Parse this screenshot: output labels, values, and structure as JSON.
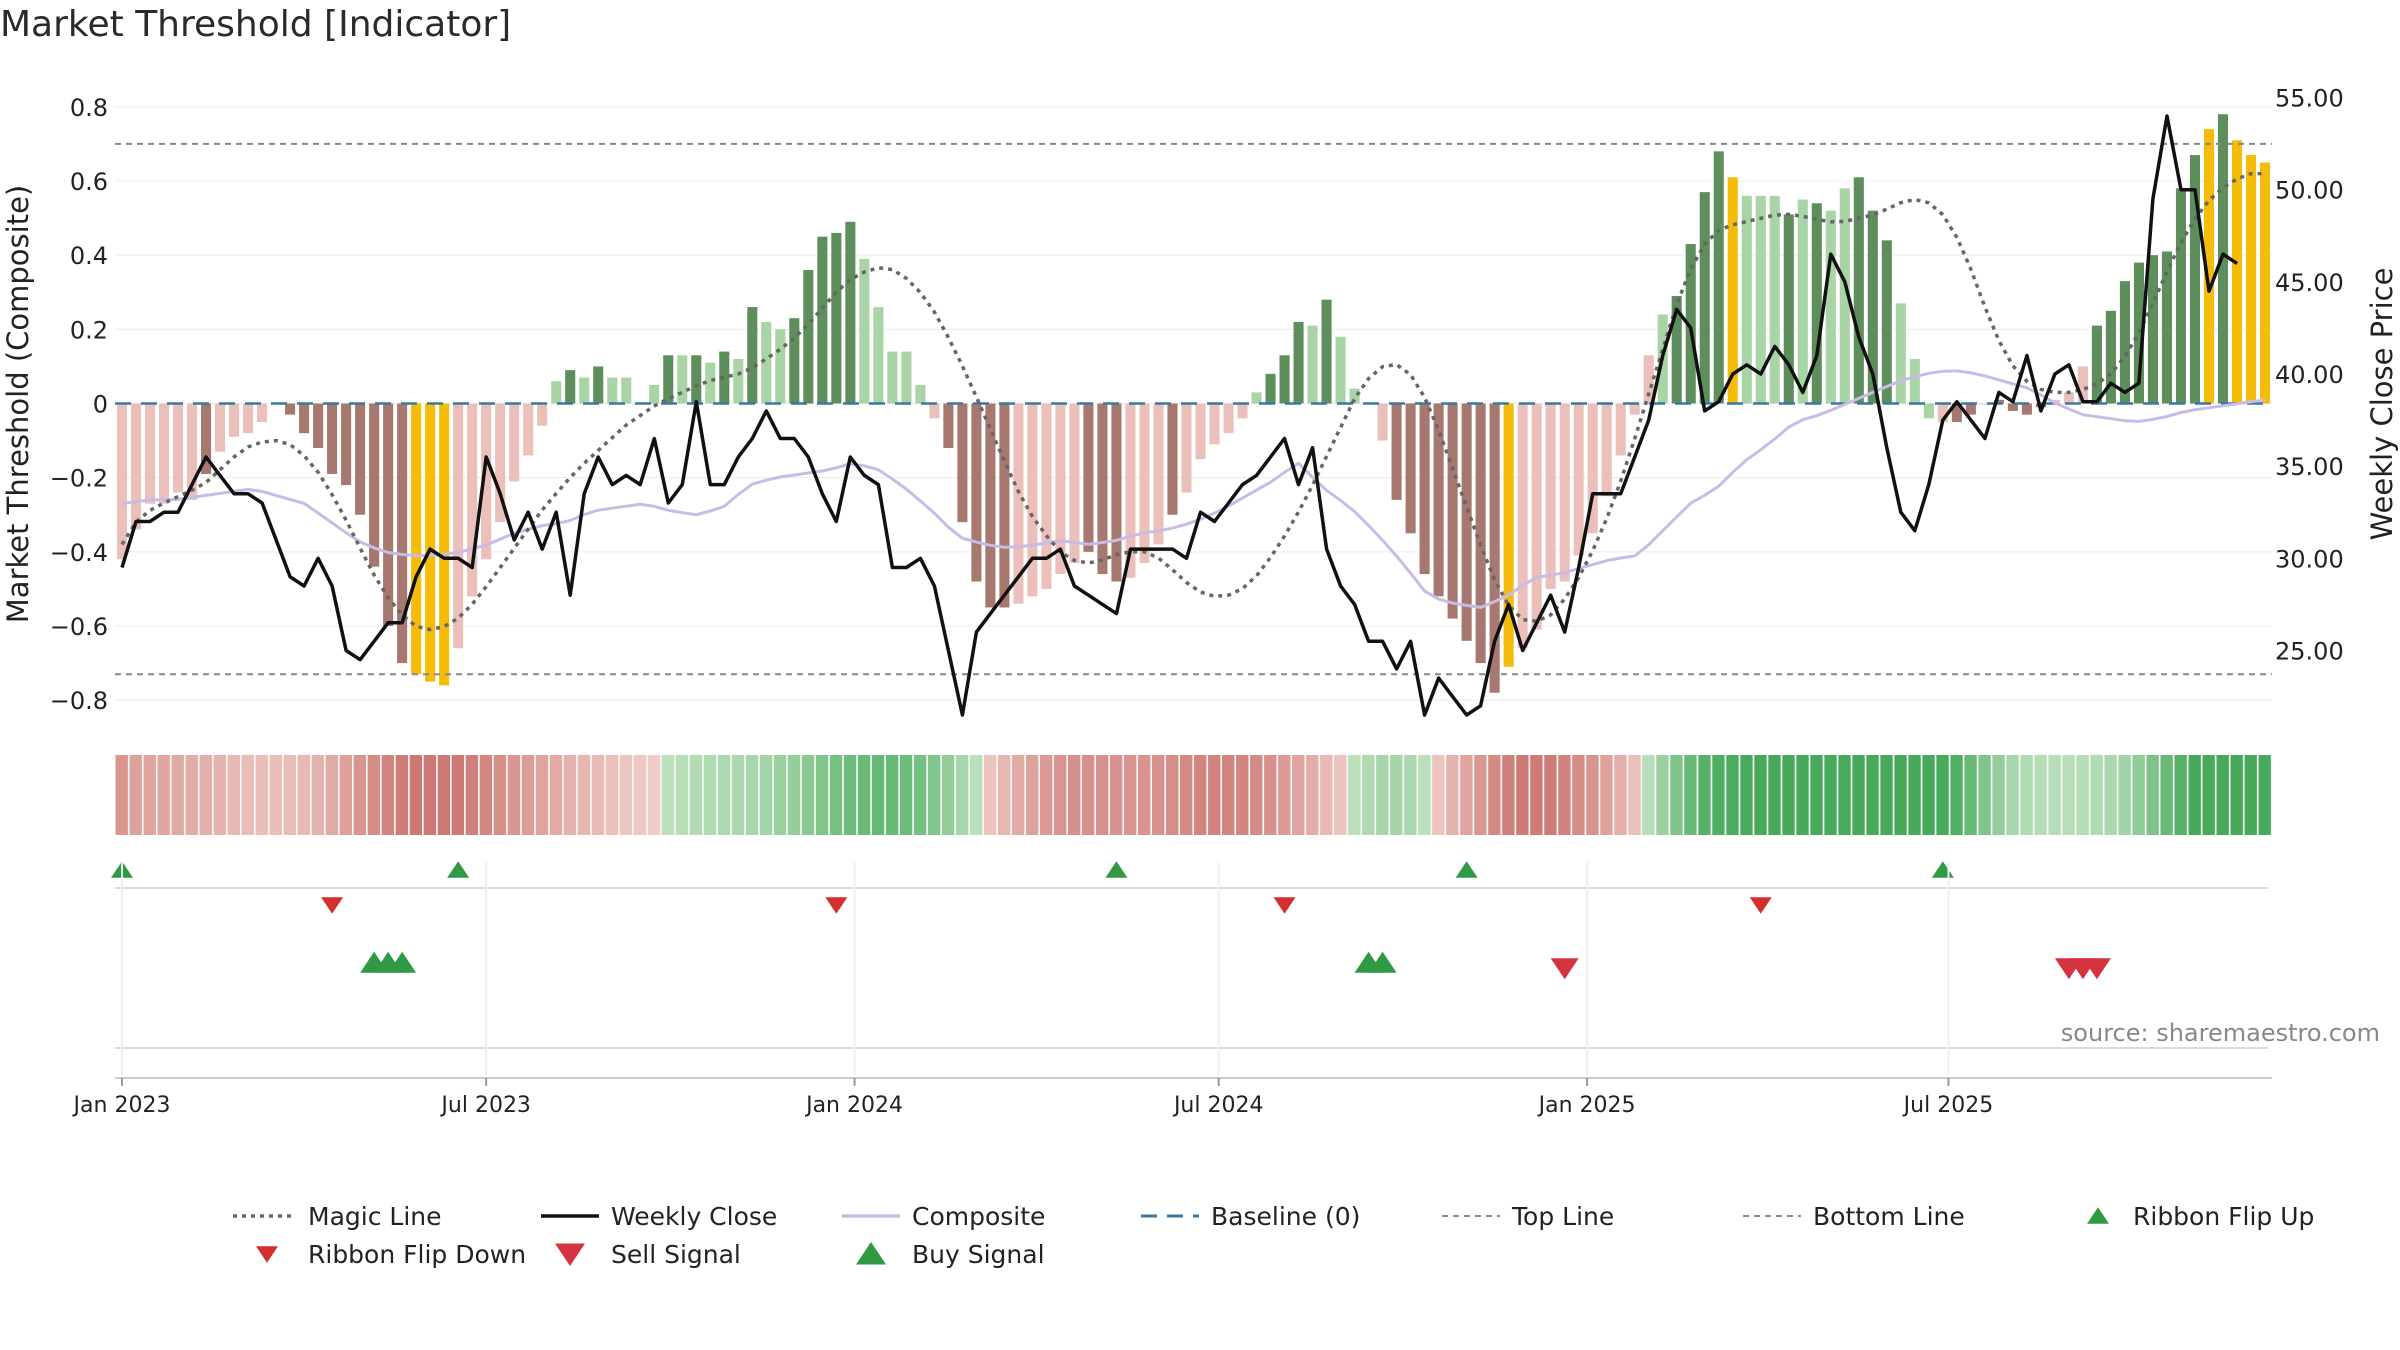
{
  "title": "Market Threshold [Indicator]",
  "source": "source: sharemaestro.com",
  "colors": {
    "neg_light": "#ebbfba",
    "neg_dark": "#a7786f",
    "pos_light": "#a9d4a5",
    "pos_dark": "#5f8e5d",
    "extreme": "#f5bd0a",
    "weekly_close": "#111111",
    "magic": "#666666",
    "composite": "#c7bce6",
    "baseline": "#3978a3",
    "thresh": "#888888",
    "buy": "#2f9944",
    "sell": "#d3343f",
    "ribbon_flip_down": "#d32f2f"
  },
  "chart_data": {
    "type": "bar",
    "title": "Market Threshold [Indicator]",
    "ylabel": "Market Threshold (Composite)",
    "y2label": "Weekly Close Price",
    "ylim": [
      -0.84,
      0.84
    ],
    "y2lim": [
      21.5,
      55.3
    ],
    "yticks": [
      0.8,
      0.6,
      0.4,
      0.2,
      0,
      -0.2,
      -0.4,
      -0.6,
      -0.8
    ],
    "yticklabels": [
      "0.8",
      "0.6",
      "0.4",
      "0.2",
      "0",
      "−0.2",
      "−0.4",
      "−0.6",
      "−0.8"
    ],
    "y2ticks": [
      55,
      50,
      45,
      40,
      35,
      30,
      25
    ],
    "y2ticklabels": [
      "55.00",
      "50.00",
      "45.00",
      "40.00",
      "35.00",
      "30.00",
      "25.00"
    ],
    "xticks": [
      {
        "week": 0,
        "label": "Jan 2023"
      },
      {
        "week": 26,
        "label": "Jul 2023"
      },
      {
        "week": 52.3,
        "label": "Jan 2024"
      },
      {
        "week": 78.3,
        "label": "Jul 2024"
      },
      {
        "week": 104.6,
        "label": "Jan 2025"
      },
      {
        "week": 130.4,
        "label": "Jul 2025"
      }
    ],
    "top_line": 0.7,
    "bottom_line": -0.73,
    "composite_bars": [
      -0.42,
      -0.34,
      -0.27,
      -0.27,
      -0.24,
      -0.26,
      -0.19,
      -0.13,
      -0.09,
      -0.08,
      -0.05,
      0,
      -0.03,
      -0.08,
      -0.12,
      -0.19,
      -0.22,
      -0.3,
      -0.44,
      -0.6,
      -0.7,
      -0.73,
      -0.75,
      -0.76,
      -0.66,
      -0.52,
      -0.42,
      -0.32,
      -0.21,
      -0.14,
      -0.06,
      0.06,
      0.09,
      0.07,
      0.1,
      0.07,
      0.07,
      0,
      0.05,
      0.13,
      0.13,
      0.13,
      0.11,
      0.14,
      0.12,
      0.26,
      0.22,
      0.2,
      0.23,
      0.36,
      0.45,
      0.46,
      0.49,
      0.39,
      0.26,
      0.14,
      0.14,
      0.05,
      -0.04,
      -0.12,
      -0.32,
      -0.48,
      -0.55,
      -0.55,
      -0.54,
      -0.52,
      -0.5,
      -0.46,
      -0.43,
      -0.4,
      -0.46,
      -0.48,
      -0.47,
      -0.43,
      -0.38,
      -0.3,
      -0.24,
      -0.15,
      -0.11,
      -0.08,
      -0.04,
      0.03,
      0.08,
      0.13,
      0.22,
      0.21,
      0.28,
      0.18,
      0.04,
      0,
      -0.1,
      -0.26,
      -0.35,
      -0.46,
      -0.52,
      -0.58,
      -0.64,
      -0.7,
      -0.78,
      -0.71,
      -0.66,
      -0.61,
      -0.5,
      -0.48,
      -0.41,
      -0.35,
      -0.25,
      -0.14,
      -0.03,
      0.13,
      0.24,
      0.29,
      0.43,
      0.57,
      0.68,
      0.61,
      0.56,
      0.56,
      0.56,
      0.51,
      0.55,
      0.54,
      0.52,
      0.58,
      0.61,
      0.52,
      0.44,
      0.27,
      0.12,
      -0.04,
      -0.05,
      -0.05,
      -0.03,
      0,
      0.01,
      -0.02,
      -0.03,
      -0.01,
      0.01,
      0.03,
      0.1,
      0.21,
      0.25,
      0.33,
      0.38,
      0.4,
      0.41,
      0.58,
      0.67,
      0.74,
      0.78,
      0.71,
      0.67,
      0.65
    ],
    "bar_color_class": [
      "nl",
      "nl",
      "nl",
      "nl",
      "nl",
      "nl",
      "nd",
      "nl",
      "nl",
      "nl",
      "nl",
      "nd",
      "nd",
      "nd",
      "nd",
      "nd",
      "nd",
      "nd",
      "nd",
      "nd",
      "nd",
      "ex",
      "ex",
      "ex",
      "nl",
      "nl",
      "nl",
      "nl",
      "nl",
      "nl",
      "nl",
      "pl",
      "pd",
      "pl",
      "pd",
      "pl",
      "pl",
      "pl",
      "pl",
      "pd",
      "pl",
      "pd",
      "pl",
      "pd",
      "pl",
      "pd",
      "pl",
      "pl",
      "pd",
      "pd",
      "pd",
      "pd",
      "pd",
      "pl",
      "pl",
      "pl",
      "pl",
      "pl",
      "nl",
      "nd",
      "nd",
      "nd",
      "nd",
      "nd",
      "nl",
      "nl",
      "nl",
      "nl",
      "nl",
      "nd",
      "nd",
      "nd",
      "nl",
      "nl",
      "nl",
      "nd",
      "nl",
      "nl",
      "nl",
      "nl",
      "nl",
      "pl",
      "pd",
      "pd",
      "pd",
      "pl",
      "pd",
      "pl",
      "pl",
      "pl",
      "nl",
      "nd",
      "nd",
      "nd",
      "nd",
      "nd",
      "nd",
      "nd",
      "nd",
      "ex",
      "nl",
      "nl",
      "nl",
      "nl",
      "nl",
      "nl",
      "nl",
      "nl",
      "nl",
      "nl",
      "pl",
      "pd",
      "pd",
      "pd",
      "pd",
      "ex",
      "pl",
      "pl",
      "pl",
      "pd",
      "pl",
      "pd",
      "pl",
      "pl",
      "pd",
      "pd",
      "pd",
      "pl",
      "pl",
      "pl",
      "nl",
      "nd",
      "nd",
      "nl",
      "nd",
      "nd",
      "nd",
      "nd",
      "nl",
      "nl",
      "nl",
      "pd",
      "pd",
      "pd",
      "pd",
      "pd",
      "pd",
      "pd",
      "pd",
      "ex",
      "pd",
      "ex",
      "ex",
      "ex",
      "pl",
      "pl"
    ],
    "weekly_close": [
      29.5,
      32,
      32,
      32.5,
      32.5,
      34,
      35.5,
      34.5,
      33.5,
      33.5,
      33,
      31,
      29,
      28.5,
      30,
      28.5,
      25,
      24.5,
      25.5,
      26.5,
      26.5,
      29,
      30.5,
      30,
      30,
      29.5,
      35.5,
      33.5,
      31,
      32.5,
      30.5,
      32.5,
      28,
      33.5,
      35.5,
      34,
      34.5,
      34,
      36.5,
      33,
      34,
      38.5,
      34,
      34,
      35.5,
      36.5,
      38,
      36.5,
      36.5,
      35.5,
      33.5,
      32,
      35.5,
      34.5,
      34,
      29.5,
      29.5,
      30,
      28.5,
      25,
      21.5,
      26,
      27,
      28,
      29,
      30,
      30,
      30.5,
      28.5,
      28,
      27.5,
      27,
      30.5,
      30.5,
      30.5,
      30.5,
      30,
      32.5,
      32,
      33,
      34,
      34.5,
      35.5,
      36.5,
      34,
      36,
      30.5,
      28.5,
      27.5,
      25.5,
      25.5,
      24,
      25.5,
      21.5,
      23.5,
      22.5,
      21.5,
      22,
      25.5,
      27.5,
      25,
      26.5,
      28,
      26,
      29.5,
      33.5,
      33.5,
      33.5,
      35.5,
      37.5,
      41,
      43.5,
      42.5,
      38,
      38.5,
      40,
      40.5,
      40,
      41.5,
      40.5,
      39,
      41,
      46.5,
      45,
      42,
      40,
      36,
      32.5,
      31.5,
      34,
      37.5,
      38.5,
      37.5,
      36.5,
      39,
      38.5,
      41,
      38,
      40,
      40.5,
      38.5,
      38.5,
      39.5,
      39,
      39.5,
      49.5,
      54,
      50,
      50,
      44.5,
      46.5,
      46
    ],
    "magic_line": [
      -0.38,
      -0.31,
      -0.28,
      -0.26,
      -0.24,
      -0.22,
      -0.18,
      -0.14,
      -0.11,
      -0.1,
      -0.1,
      -0.13,
      -0.18,
      -0.25,
      -0.33,
      -0.42,
      -0.5,
      -0.56,
      -0.6,
      -0.61,
      -0.6,
      -0.57,
      -0.52,
      -0.46,
      -0.4,
      -0.34,
      -0.28,
      -0.23,
      -0.18,
      -0.14,
      -0.1,
      -0.06,
      -0.03,
      0,
      0.02,
      0.04,
      0.06,
      0.07,
      0.08,
      0.1,
      0.13,
      0.16,
      0.2,
      0.25,
      0.3,
      0.34,
      0.36,
      0.37,
      0.35,
      0.31,
      0.25,
      0.17,
      0.08,
      -0.02,
      -0.12,
      -0.22,
      -0.3,
      -0.36,
      -0.41,
      -0.43,
      -0.43,
      -0.41,
      -0.4,
      -0.4,
      -0.42,
      -0.46,
      -0.5,
      -0.52,
      -0.52,
      -0.5,
      -0.46,
      -0.4,
      -0.33,
      -0.25,
      -0.16,
      -0.07,
      0.02,
      0.08,
      0.11,
      0.1,
      0.04,
      -0.06,
      -0.18,
      -0.3,
      -0.42,
      -0.52,
      -0.58,
      -0.59,
      -0.57,
      -0.52,
      -0.45,
      -0.36,
      -0.25,
      -0.12,
      0.02,
      0.16,
      0.3,
      0.4,
      0.46,
      0.48,
      0.49,
      0.5,
      0.51,
      0.51,
      0.5,
      0.49,
      0.49,
      0.5,
      0.51,
      0.53,
      0.55,
      0.55,
      0.52,
      0.45,
      0.35,
      0.23,
      0.13,
      0.07,
      0.04,
      0.03,
      0.03,
      0.04,
      0.06,
      0.1,
      0.17,
      0.26,
      0.36,
      0.45,
      0.52,
      0.57,
      0.6,
      0.62,
      0.62
    ],
    "composite_line": [
      -0.27,
      -0.26,
      -0.26,
      -0.25,
      -0.24,
      -0.23,
      -0.25,
      -0.27,
      -0.32,
      -0.37,
      -0.4,
      -0.41,
      -0.41,
      -0.4,
      -0.38,
      -0.35,
      -0.33,
      -0.32,
      -0.29,
      -0.28,
      -0.27,
      -0.29,
      -0.3,
      -0.28,
      -0.22,
      -0.2,
      -0.19,
      -0.18,
      -0.16,
      -0.18,
      -0.23,
      -0.29,
      -0.36,
      -0.38,
      -0.39,
      -0.38,
      -0.37,
      -0.38,
      -0.37,
      -0.35,
      -0.34,
      -0.32,
      -0.29,
      -0.25,
      -0.21,
      -0.16,
      -0.23,
      -0.28,
      -0.35,
      -0.43,
      -0.52,
      -0.54,
      -0.55,
      -0.52,
      -0.47,
      -0.46,
      -0.44,
      -0.42,
      -0.41,
      -0.34,
      -0.27,
      -0.23,
      -0.16,
      -0.11,
      -0.05,
      -0.03,
      0,
      0.03,
      0.06,
      0.08,
      0.09,
      0.08,
      0.06,
      0.04,
      0,
      -0.03,
      -0.04,
      -0.05,
      -0.04,
      -0.02,
      -0.01,
      0,
      0.01
    ],
    "ribbon_flip_up_weeks": [
      0,
      24,
      71,
      96,
      130
    ],
    "ribbon_flip_down_weeks": [
      15,
      51,
      83,
      117
    ],
    "buy_signal_weeks": [
      18,
      19,
      20,
      89,
      90
    ],
    "sell_signal_weeks": [
      103,
      139,
      140,
      141
    ],
    "legend": [
      {
        "label": "Magic Line",
        "style": "dotted",
        "color": "#666666"
      },
      {
        "label": "Weekly Close",
        "style": "solid",
        "color": "#111111"
      },
      {
        "label": "Composite",
        "style": "solid",
        "color": "#c7bce6"
      },
      {
        "label": "Baseline (0)",
        "style": "dashed",
        "color": "#3978a3"
      },
      {
        "label": "Top Line",
        "style": "dashed-thin",
        "color": "#888888"
      },
      {
        "label": "Bottom Line",
        "style": "dashed-thin",
        "color": "#888888"
      },
      {
        "label": "Ribbon Flip Up",
        "style": "tri-up",
        "color": "#2f9944"
      },
      {
        "label": "Ribbon Flip Down",
        "style": "tri-down-small",
        "color": "#d32f2f"
      },
      {
        "label": "Sell Signal",
        "style": "tri-down",
        "color": "#d3343f"
      },
      {
        "label": "Buy Signal",
        "style": "tri-up-big",
        "color": "#2f9944"
      }
    ]
  }
}
